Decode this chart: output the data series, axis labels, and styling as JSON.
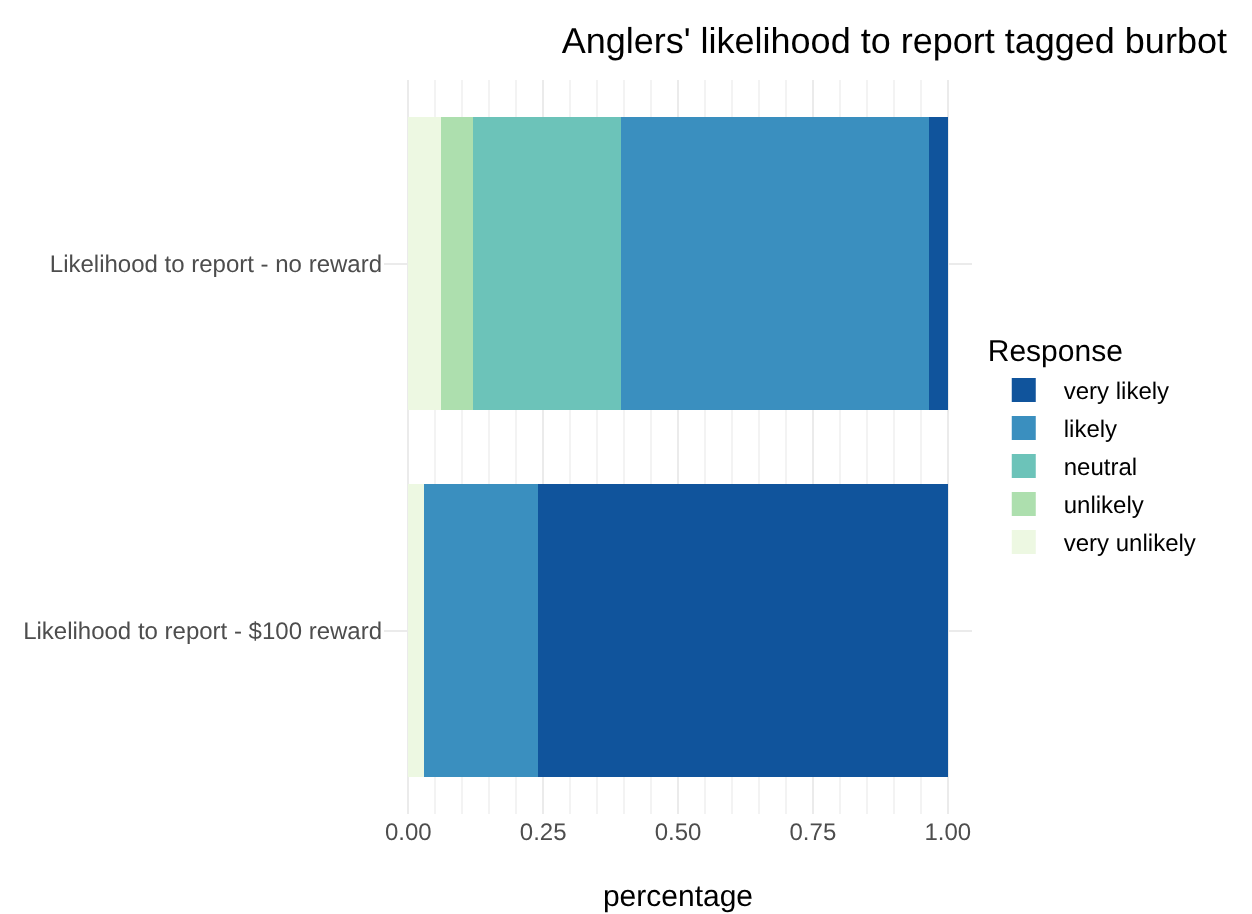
{
  "chart_data": {
    "type": "bar",
    "orientation": "horizontal",
    "stacked": true,
    "title": "Anglers' likelihood to report tagged burbot",
    "xlabel": "percentage",
    "legend_title": "Response",
    "categories": [
      "Likelihood to report - no reward",
      "Likelihood to report - $100 reward"
    ],
    "series": [
      {
        "name": "very unlikely",
        "color": "#edf8e2",
        "values": [
          0.06,
          0.03
        ]
      },
      {
        "name": "unlikely",
        "color": "#addfae",
        "values": [
          0.06,
          0
        ]
      },
      {
        "name": "neutral",
        "color": "#6cc3b9",
        "values": [
          0.275,
          0
        ]
      },
      {
        "name": "likely",
        "color": "#3a8fbf",
        "values": [
          0.57,
          0.21
        ]
      },
      {
        "name": "very likely",
        "color": "#10549c",
        "values": [
          0.035,
          0.76
        ]
      }
    ],
    "xlim": [
      -0.045,
      1.045
    ],
    "xticks": [
      {
        "value": 0,
        "label": "0.00"
      },
      {
        "value": 0.25,
        "label": "0.25"
      },
      {
        "value": 0.5,
        "label": "0.50"
      },
      {
        "value": 0.75,
        "label": "0.75"
      },
      {
        "value": 1,
        "label": "1.00"
      }
    ],
    "grid": true,
    "legend": "right"
  }
}
